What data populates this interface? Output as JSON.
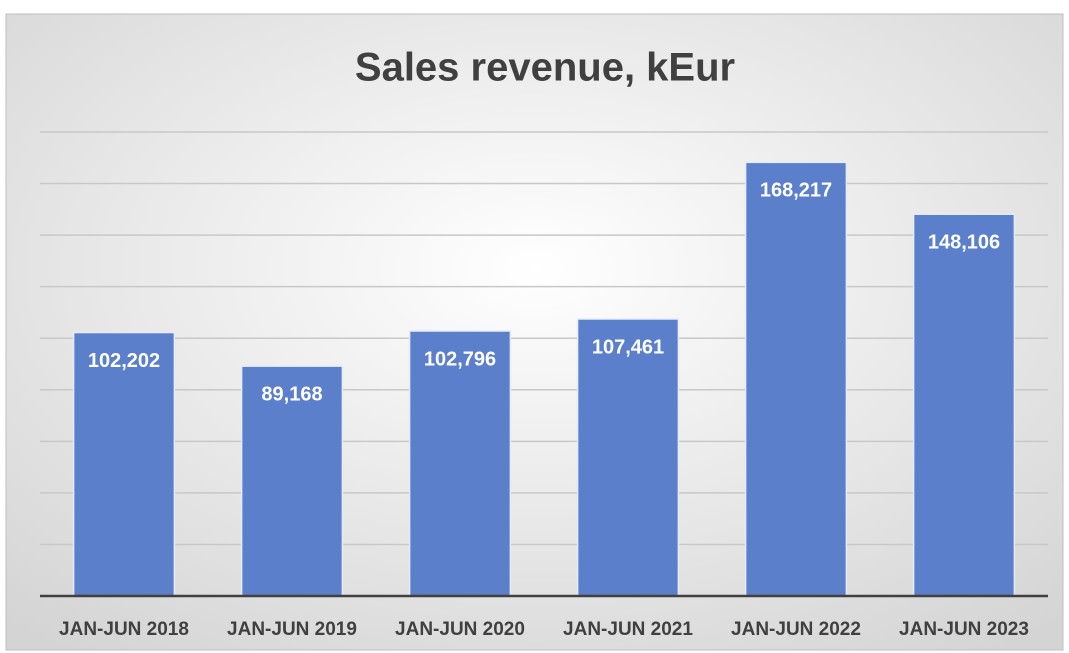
{
  "chart_data": {
    "type": "bar",
    "title": "Sales revenue, kEur",
    "categories": [
      "JAN-JUN 2018",
      "JAN-JUN 2019",
      "JAN-JUN 2020",
      "JAN-JUN 2021",
      "JAN-JUN 2022",
      "JAN-JUN 2023"
    ],
    "values": [
      102202,
      89168,
      102796,
      107461,
      168217,
      148106
    ],
    "value_labels": [
      "102,202",
      "89,168",
      "102,796",
      "107,461",
      "168,217",
      "148,106"
    ],
    "color": "#5b7fcb",
    "ylim": [
      0,
      180000
    ],
    "yticks": [
      0,
      20000,
      40000,
      60000,
      80000,
      100000,
      120000,
      140000,
      160000,
      180000
    ],
    "grid": true
  }
}
